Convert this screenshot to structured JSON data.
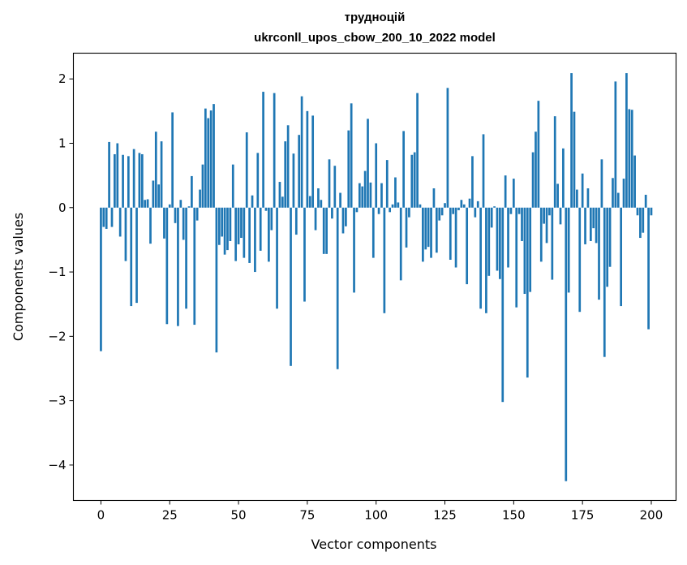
{
  "chart_data": {
    "type": "bar",
    "title": "трудноцій",
    "subtitle": "ukrconll_upos_cbow_200_10_2022 model",
    "xlabel": "Vector components",
    "ylabel": "Components values",
    "xlim": [
      -10,
      209
    ],
    "ylim": [
      -4.55,
      2.4
    ],
    "xticks": [
      0,
      25,
      50,
      75,
      100,
      125,
      150,
      175,
      200
    ],
    "yticks": [
      2,
      1,
      0,
      -1,
      -2,
      -3,
      -4
    ],
    "ytick_labels": [
      "2",
      "1",
      "0",
      "−1",
      "−2",
      "−3",
      "−4"
    ],
    "bar_color": "#1f77b4",
    "grid": false,
    "values": [
      -2.23,
      -0.3,
      -0.33,
      1.02,
      -0.3,
      0.83,
      1.0,
      -0.45,
      0.82,
      -0.83,
      0.8,
      -1.53,
      0.91,
      -1.48,
      0.85,
      0.83,
      0.12,
      0.13,
      -0.56,
      0.42,
      1.18,
      0.36,
      1.03,
      -0.48,
      -1.81,
      0.05,
      1.48,
      -0.24,
      -1.84,
      0.12,
      -0.5,
      -1.57,
      0.02,
      0.49,
      -1.82,
      -0.2,
      0.28,
      0.67,
      1.54,
      1.39,
      1.51,
      1.61,
      -2.25,
      -0.58,
      -0.45,
      -0.73,
      -0.66,
      -0.52,
      0.67,
      -0.83,
      -0.57,
      -0.47,
      -0.78,
      1.17,
      -0.86,
      0.19,
      -1.0,
      0.85,
      -0.67,
      1.8,
      -0.05,
      -0.84,
      -0.35,
      1.78,
      -1.57,
      0.4,
      0.17,
      1.03,
      1.28,
      -2.46,
      0.84,
      -0.42,
      1.13,
      1.73,
      -1.46,
      1.5,
      0.18,
      1.43,
      -0.35,
      0.3,
      0.12,
      -0.72,
      -0.72,
      0.75,
      -0.17,
      0.65,
      -2.51,
      0.23,
      -0.4,
      -0.29,
      1.2,
      1.62,
      -1.32,
      -0.07,
      0.38,
      0.33,
      0.57,
      1.38,
      0.39,
      -0.78,
      1.0,
      -0.1,
      0.38,
      -1.64,
      0.74,
      -0.07,
      0.05,
      0.47,
      0.08,
      -1.13,
      1.19,
      -0.62,
      -0.15,
      0.82,
      0.86,
      1.78,
      0.05,
      -0.84,
      -0.65,
      -0.61,
      -0.78,
      0.3,
      -0.7,
      -0.2,
      -0.12,
      0.07,
      1.86,
      -0.81,
      -0.1,
      -0.93,
      -0.04,
      0.12,
      0.05,
      -1.19,
      0.14,
      0.8,
      -0.15,
      0.1,
      -1.57,
      1.14,
      -1.64,
      -1.06,
      -0.31,
      0.02,
      -0.98,
      -1.11,
      -3.02,
      0.5,
      -0.93,
      -0.1,
      0.45,
      -1.55,
      -0.1,
      -0.52,
      -1.34,
      -2.64,
      -1.31,
      0.86,
      1.18,
      1.66,
      -0.84,
      -0.25,
      -0.55,
      -0.12,
      -1.12,
      1.42,
      0.37,
      -0.26,
      0.92,
      -4.25,
      -1.32,
      2.09,
      1.49,
      0.28,
      -1.62,
      0.53,
      -0.57,
      0.3,
      -0.52,
      -0.32,
      -0.55,
      -1.43,
      0.75,
      -2.32,
      -1.23,
      -0.92,
      0.46,
      1.96,
      0.23,
      -1.53,
      0.45,
      2.09,
      1.53,
      1.52,
      0.81,
      -0.12,
      -0.47,
      -0.39,
      0.2,
      -1.89,
      -0.12
    ]
  }
}
